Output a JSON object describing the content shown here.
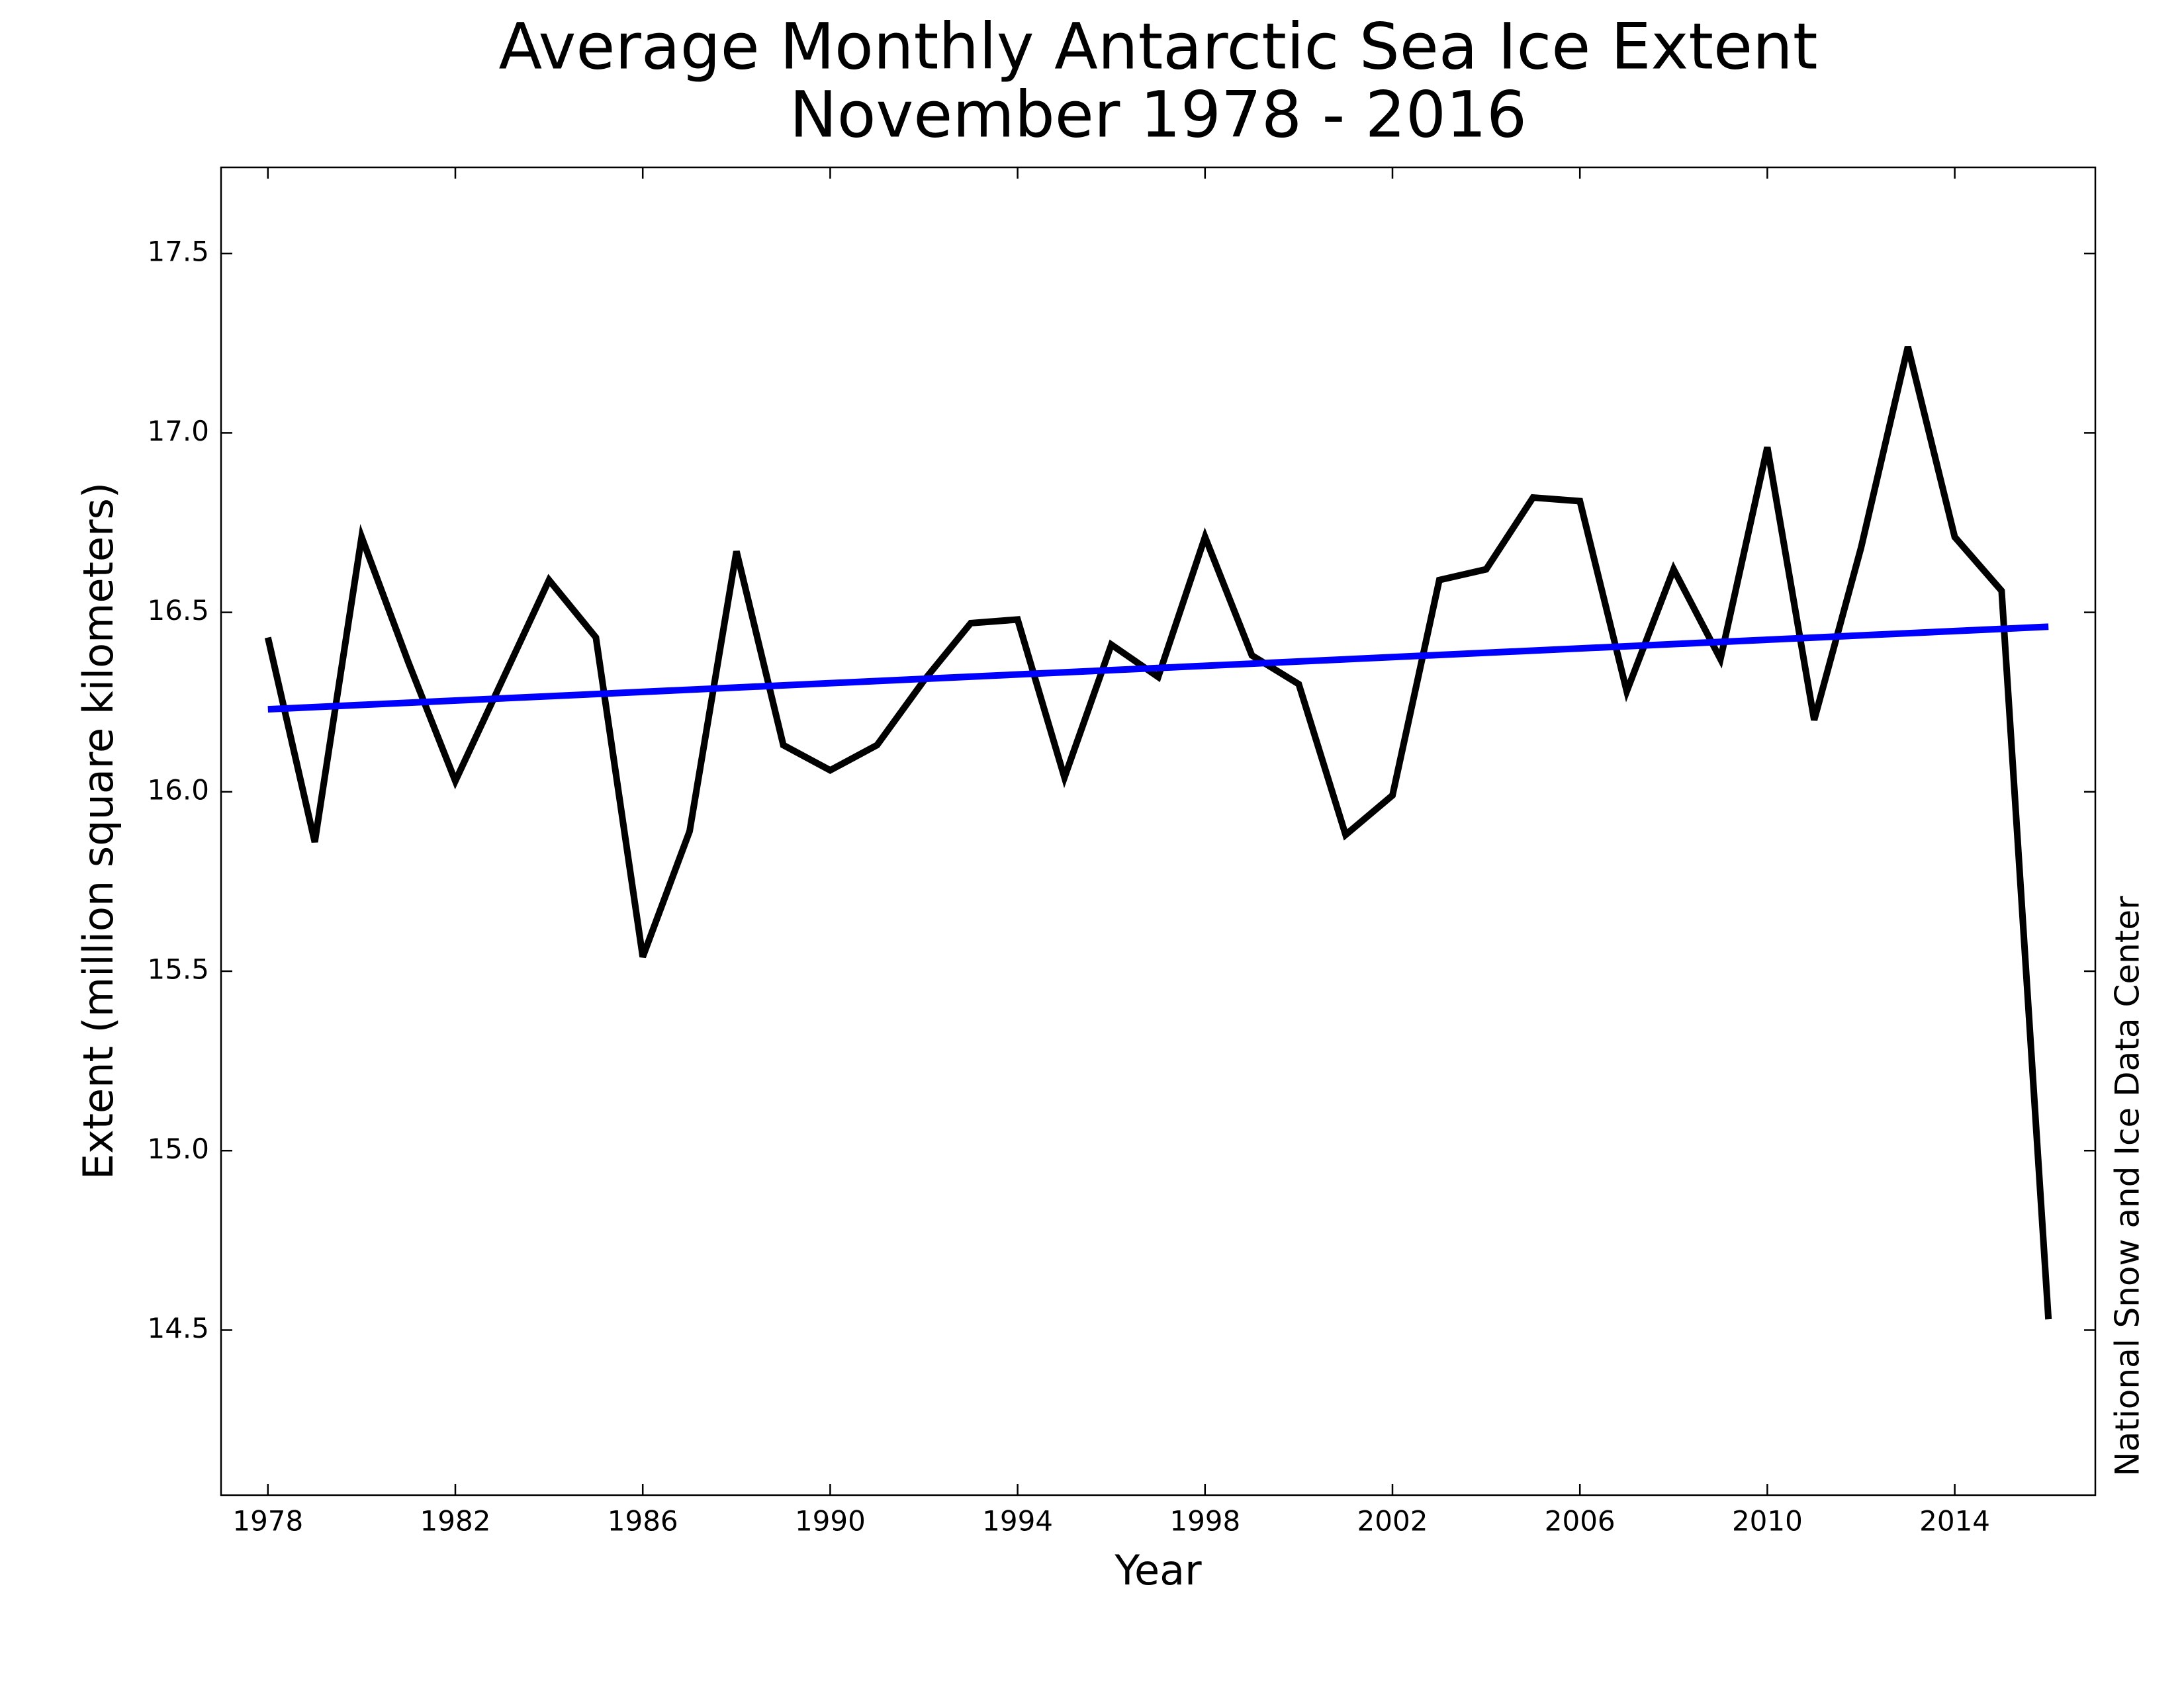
{
  "chart_data": {
    "type": "line",
    "title": "Average Monthly Antarctic Sea Ice Extent",
    "subtitle": "November 1978 - 2016",
    "x_label": "Year",
    "y_label": "Extent (million square kilometers)",
    "annotation": "National Snow and Ice Data Center",
    "x": [
      1978,
      1979,
      1980,
      1981,
      1982,
      1983,
      1984,
      1985,
      1986,
      1987,
      1988,
      1989,
      1990,
      1991,
      1992,
      1993,
      1994,
      1995,
      1996,
      1997,
      1998,
      1999,
      2000,
      2001,
      2002,
      2003,
      2004,
      2005,
      2006,
      2007,
      2008,
      2009,
      2010,
      2011,
      2012,
      2013,
      2014,
      2015,
      2016
    ],
    "series": [
      {
        "color": "#000000",
        "values": [
          16.43,
          15.86,
          16.71,
          16.36,
          16.03,
          16.31,
          16.59,
          16.43,
          15.54,
          15.89,
          16.67,
          16.13,
          16.06,
          16.13,
          16.31,
          16.47,
          16.48,
          16.04,
          16.41,
          16.32,
          16.71,
          16.38,
          16.3,
          15.88,
          15.99,
          16.59,
          16.62,
          16.82,
          16.81,
          16.28,
          16.62,
          16.37,
          16.96,
          16.2,
          16.68,
          17.24,
          16.71,
          16.56,
          14.53
        ]
      },
      {
        "color": "#0000ff",
        "x": [
          1978,
          2016
        ],
        "values": [
          16.23,
          16.46
        ]
      }
    ],
    "xlim": [
      1977,
      2017
    ],
    "ylim": [
      14.04,
      17.74
    ],
    "xticks": [
      1978,
      1982,
      1986,
      1990,
      1994,
      1998,
      2002,
      2006,
      2010,
      2014
    ],
    "yticks": [
      14.5,
      {
        "value": 15,
        "label": "15.0"
      },
      15.5,
      {
        "value": 16,
        "label": "16.0"
      },
      16.5,
      {
        "value": 17,
        "label": "17.0"
      },
      17.5
    ],
    "grid": false
  }
}
